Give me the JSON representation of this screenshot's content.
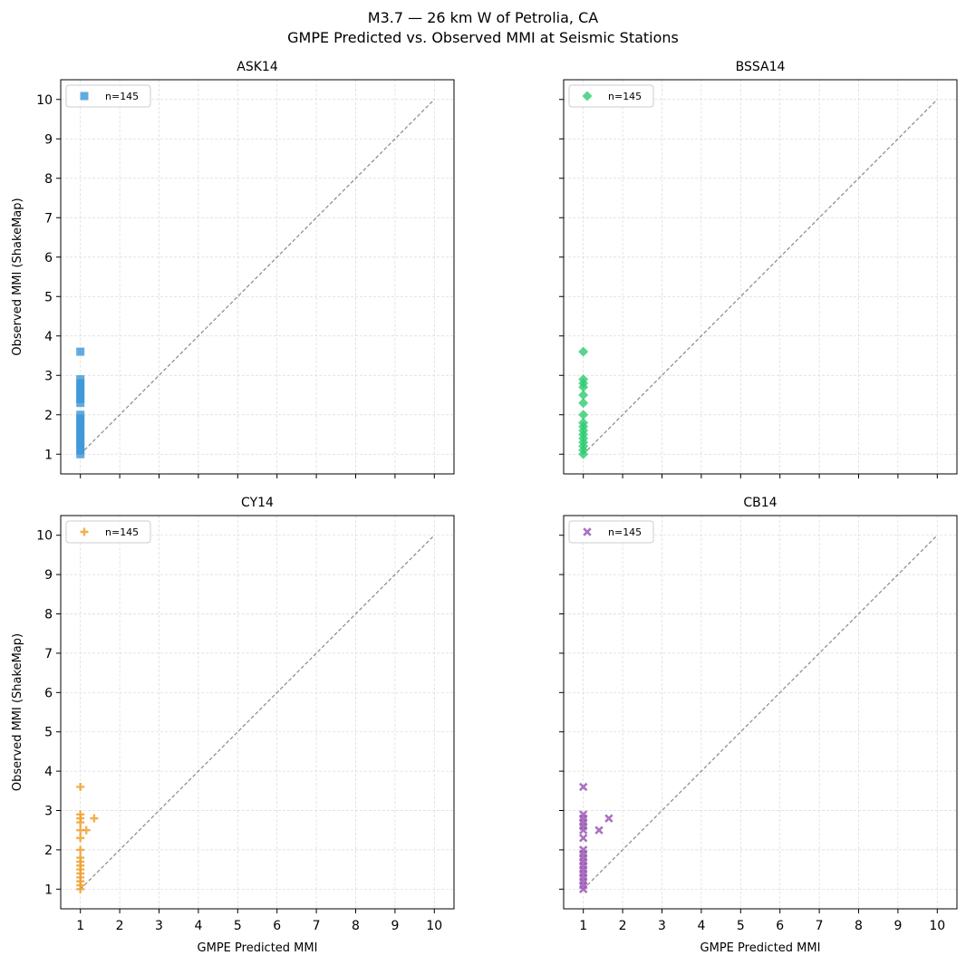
{
  "figure": {
    "title_line1": "M3.7 — 26 km W of Petrolia, CA",
    "title_line2": "GMPE Predicted vs. Observed MMI at Seismic Stations"
  },
  "chart_data": [
    {
      "type": "scatter",
      "title": "ASK14",
      "xlabel": "",
      "ylabel": "Observed MMI (ShakeMap)",
      "xlim": [
        0.5,
        10.5
      ],
      "ylim": [
        0.5,
        10.5
      ],
      "xticks": [],
      "yticks": [
        "1",
        "2",
        "3",
        "4",
        "5",
        "6",
        "7",
        "8",
        "9",
        "10"
      ],
      "grid": true,
      "legend_location": "upper left",
      "legend_label": "n=145",
      "marker": "square",
      "color": "#3a96d6",
      "reference_line": {
        "x": [
          1,
          10
        ],
        "y": [
          1,
          10
        ],
        "style": "dashed",
        "color": "#888888"
      },
      "points": [
        {
          "x": 1,
          "y": 3.6
        },
        {
          "x": 1,
          "y": 2.9
        },
        {
          "x": 1,
          "y": 2.8
        },
        {
          "x": 1,
          "y": 2.7
        },
        {
          "x": 1,
          "y": 2.6
        },
        {
          "x": 1,
          "y": 2.5
        },
        {
          "x": 1,
          "y": 2.4
        },
        {
          "x": 1,
          "y": 2.3
        },
        {
          "x": 1,
          "y": 2.0
        },
        {
          "x": 1,
          "y": 1.9
        },
        {
          "x": 1,
          "y": 1.8
        },
        {
          "x": 1,
          "y": 1.7
        },
        {
          "x": 1,
          "y": 1.6
        },
        {
          "x": 1,
          "y": 1.5
        },
        {
          "x": 1,
          "y": 1.4
        },
        {
          "x": 1,
          "y": 1.3
        },
        {
          "x": 1,
          "y": 1.2
        },
        {
          "x": 1,
          "y": 1.1
        },
        {
          "x": 1,
          "y": 1.0
        }
      ]
    },
    {
      "type": "scatter",
      "title": "BSSA14",
      "xlabel": "",
      "ylabel": "",
      "xlim": [
        0.5,
        10.5
      ],
      "ylim": [
        0.5,
        10.5
      ],
      "xticks": [],
      "yticks": [],
      "grid": true,
      "legend_location": "upper left",
      "legend_label": "n=145",
      "marker": "diamond",
      "color": "#2ecc71",
      "reference_line": {
        "x": [
          1,
          10
        ],
        "y": [
          1,
          10
        ],
        "style": "dashed",
        "color": "#888888"
      },
      "points": [
        {
          "x": 1,
          "y": 3.6
        },
        {
          "x": 1,
          "y": 2.9
        },
        {
          "x": 1,
          "y": 2.8
        },
        {
          "x": 1,
          "y": 2.7
        },
        {
          "x": 1,
          "y": 2.5
        },
        {
          "x": 1,
          "y": 2.3
        },
        {
          "x": 1,
          "y": 2.0
        },
        {
          "x": 1,
          "y": 1.8
        },
        {
          "x": 1,
          "y": 1.7
        },
        {
          "x": 1,
          "y": 1.6
        },
        {
          "x": 1,
          "y": 1.5
        },
        {
          "x": 1,
          "y": 1.4
        },
        {
          "x": 1,
          "y": 1.3
        },
        {
          "x": 1,
          "y": 1.2
        },
        {
          "x": 1,
          "y": 1.1
        },
        {
          "x": 1,
          "y": 1.0
        }
      ]
    },
    {
      "type": "scatter",
      "title": "CY14",
      "xlabel": "GMPE Predicted MMI",
      "ylabel": "Observed MMI (ShakeMap)",
      "xlim": [
        0.5,
        10.5
      ],
      "ylim": [
        0.5,
        10.5
      ],
      "xticks": [
        "1",
        "2",
        "3",
        "4",
        "5",
        "6",
        "7",
        "8",
        "9",
        "10"
      ],
      "yticks": [
        "1",
        "2",
        "3",
        "4",
        "5",
        "6",
        "7",
        "8",
        "9",
        "10"
      ],
      "grid": true,
      "legend_location": "upper left",
      "legend_label": "n=145",
      "marker": "plus",
      "color": "#f0a030",
      "reference_line": {
        "x": [
          1,
          10
        ],
        "y": [
          1,
          10
        ],
        "style": "dashed",
        "color": "#888888"
      },
      "points": [
        {
          "x": 1,
          "y": 3.6
        },
        {
          "x": 1,
          "y": 2.9
        },
        {
          "x": 1,
          "y": 2.8
        },
        {
          "x": 1,
          "y": 2.7
        },
        {
          "x": 1,
          "y": 2.5
        },
        {
          "x": 1.15,
          "y": 2.5
        },
        {
          "x": 1.35,
          "y": 2.8
        },
        {
          "x": 1,
          "y": 2.3
        },
        {
          "x": 1,
          "y": 2.0
        },
        {
          "x": 1,
          "y": 1.8
        },
        {
          "x": 1,
          "y": 1.7
        },
        {
          "x": 1,
          "y": 1.6
        },
        {
          "x": 1,
          "y": 1.5
        },
        {
          "x": 1,
          "y": 1.4
        },
        {
          "x": 1,
          "y": 1.3
        },
        {
          "x": 1,
          "y": 1.2
        },
        {
          "x": 1,
          "y": 1.1
        },
        {
          "x": 1,
          "y": 1.0
        }
      ]
    },
    {
      "type": "scatter",
      "title": "CB14",
      "xlabel": "GMPE Predicted MMI",
      "ylabel": "",
      "xlim": [
        0.5,
        10.5
      ],
      "ylim": [
        0.5,
        10.5
      ],
      "xticks": [
        "1",
        "2",
        "3",
        "4",
        "5",
        "6",
        "7",
        "8",
        "9",
        "10"
      ],
      "yticks": [],
      "grid": true,
      "legend_location": "upper left",
      "legend_label": "n=145",
      "marker": "x",
      "color": "#9b59b6",
      "reference_line": {
        "x": [
          1,
          10
        ],
        "y": [
          1,
          10
        ],
        "style": "dashed",
        "color": "#888888"
      },
      "points": [
        {
          "x": 1,
          "y": 3.6
        },
        {
          "x": 1,
          "y": 2.9
        },
        {
          "x": 1,
          "y": 2.8
        },
        {
          "x": 1,
          "y": 2.7
        },
        {
          "x": 1,
          "y": 2.6
        },
        {
          "x": 1,
          "y": 2.5
        },
        {
          "x": 1.4,
          "y": 2.5
        },
        {
          "x": 1.65,
          "y": 2.8
        },
        {
          "x": 1,
          "y": 2.3
        },
        {
          "x": 1,
          "y": 2.0
        },
        {
          "x": 1,
          "y": 1.9
        },
        {
          "x": 1,
          "y": 1.8
        },
        {
          "x": 1,
          "y": 1.7
        },
        {
          "x": 1,
          "y": 1.6
        },
        {
          "x": 1,
          "y": 1.5
        },
        {
          "x": 1,
          "y": 1.4
        },
        {
          "x": 1,
          "y": 1.3
        },
        {
          "x": 1,
          "y": 1.2
        },
        {
          "x": 1,
          "y": 1.1
        },
        {
          "x": 1,
          "y": 1.0
        }
      ]
    }
  ]
}
